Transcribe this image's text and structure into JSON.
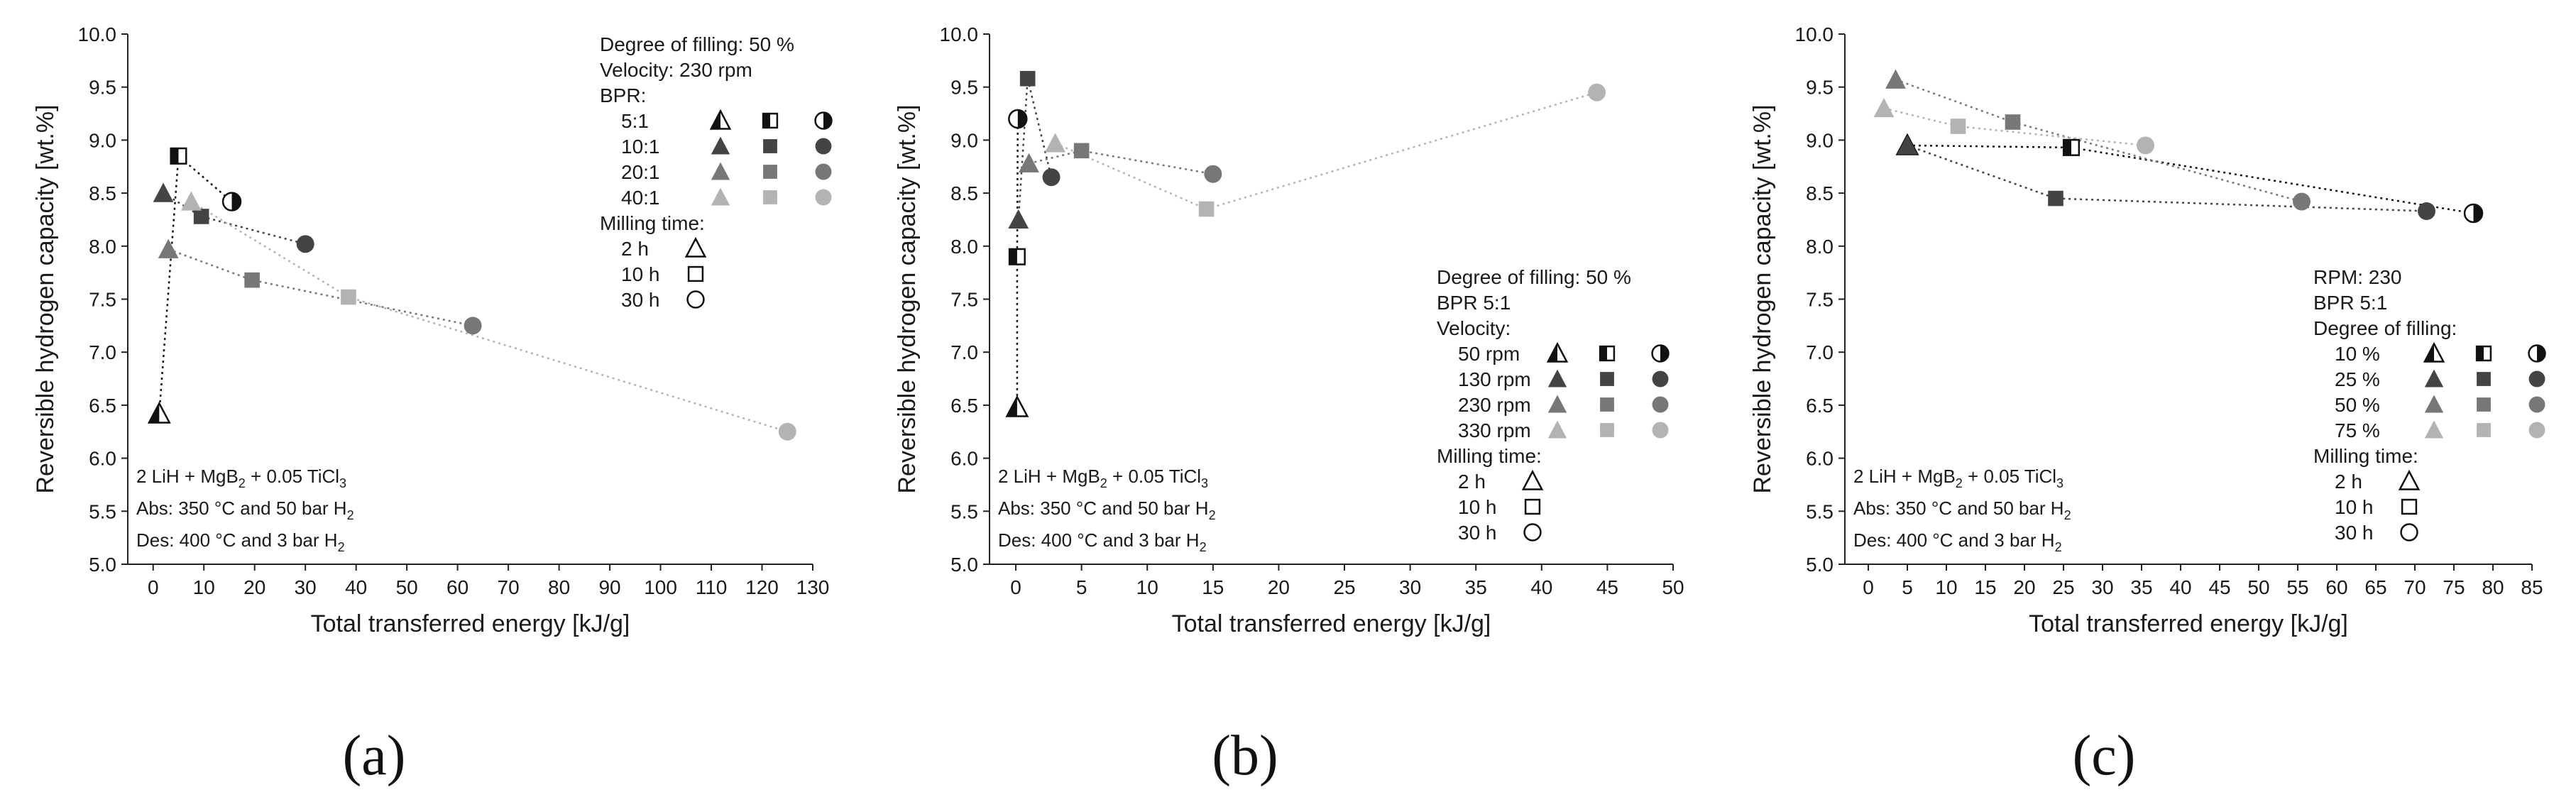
{
  "colors": {
    "c1": "#111111",
    "c2": "#444444",
    "c3": "#777777",
    "c4": "#b3b3b3"
  },
  "panels": [
    {
      "caption": "(a)",
      "chart_data": {
        "type": "scatter",
        "xlabel": "Total transferred energy [kJ/g]",
        "ylabel": "Reversible hydrogen capacity [wt.%]",
        "xlim": [
          -5,
          130
        ],
        "ylim": [
          5.0,
          10.0
        ],
        "xticks": [
          0,
          10,
          20,
          30,
          40,
          50,
          60,
          70,
          80,
          90,
          100,
          110,
          120,
          130
        ],
        "xtick_labels": [
          "0",
          "10",
          "20",
          "30",
          "40",
          "50",
          "60",
          "70",
          "80",
          "90",
          "100",
          "110",
          "120",
          "130"
        ],
        "yticks": [
          5.0,
          5.5,
          6.0,
          6.5,
          7.0,
          7.5,
          8.0,
          8.5,
          9.0,
          9.5,
          10.0
        ],
        "ytick_labels": [
          "5.0",
          "5.5",
          "6.0",
          "6.5",
          "7.0",
          "7.5",
          "8.0",
          "8.5",
          "9.0",
          "9.5",
          "10.0"
        ],
        "series": [
          {
            "name": "5:1",
            "color": "c1",
            "points": [
              {
                "x": 1.2,
                "y": 6.42,
                "shape": "triangle"
              },
              {
                "x": 5.0,
                "y": 8.85,
                "shape": "square"
              },
              {
                "x": 15.5,
                "y": 8.42,
                "shape": "circle"
              }
            ]
          },
          {
            "name": "10:1",
            "color": "c2",
            "points": [
              {
                "x": 2.0,
                "y": 8.5,
                "shape": "triangle"
              },
              {
                "x": 9.5,
                "y": 8.28,
                "shape": "square"
              },
              {
                "x": 30.0,
                "y": 8.02,
                "shape": "circle"
              }
            ]
          },
          {
            "name": "20:1",
            "color": "c3",
            "points": [
              {
                "x": 3.0,
                "y": 7.97,
                "shape": "triangle"
              },
              {
                "x": 19.5,
                "y": 7.68,
                "shape": "square"
              },
              {
                "x": 63.0,
                "y": 7.25,
                "shape": "circle"
              }
            ]
          },
          {
            "name": "40:1",
            "color": "c4",
            "points": [
              {
                "x": 7.5,
                "y": 8.42,
                "shape": "triangle"
              },
              {
                "x": 38.5,
                "y": 7.52,
                "shape": "square"
              },
              {
                "x": 125.0,
                "y": 6.25,
                "shape": "circle"
              }
            ]
          }
        ],
        "legend": {
          "placement": "top-right",
          "header": [
            "Degree of filling: 50 %",
            "Velocity: 230 rpm",
            "BPR:"
          ],
          "rows": [
            {
              "label": "5:1",
              "color": "c1"
            },
            {
              "label": "10:1",
              "color": "c2"
            },
            {
              "label": "20:1",
              "color": "c3"
            },
            {
              "label": "40:1",
              "color": "c4"
            }
          ],
          "milling_title": "Milling time:",
          "milling": [
            {
              "label": "2 h",
              "shape": "triangle"
            },
            {
              "label": "10 h",
              "shape": "square"
            },
            {
              "label": "30 h",
              "shape": "circle"
            }
          ]
        },
        "annotation": {
          "line1_main": "2 LiH + MgB",
          "line1_sub1": "2",
          "line1_mid": " + 0.05 TiCl",
          "line1_sub2": "3",
          "line2_main": "Abs: 350 °C and 50 bar H",
          "line2_sub": "2",
          "line3_main": "Des: 400 °C and 3 bar H",
          "line3_sub": "2"
        }
      }
    },
    {
      "caption": "(b)",
      "chart_data": {
        "type": "scatter",
        "xlabel": "Total transferred energy [kJ/g]",
        "ylabel": "Reversible hydrogen capacity [wt.%]",
        "xlim": [
          -2,
          50
        ],
        "ylim": [
          5.0,
          10.0
        ],
        "xticks": [
          0,
          5,
          10,
          15,
          20,
          25,
          30,
          35,
          40,
          45,
          50
        ],
        "xtick_labels": [
          "0",
          "5",
          "10",
          "15",
          "20",
          "25",
          "30",
          "35",
          "40",
          "45",
          "50"
        ],
        "yticks": [
          5.0,
          5.5,
          6.0,
          6.5,
          7.0,
          7.5,
          8.0,
          8.5,
          9.0,
          9.5,
          10.0
        ],
        "ytick_labels": [
          "5.0",
          "5.5",
          "6.0",
          "6.5",
          "7.0",
          "7.5",
          "8.0",
          "8.5",
          "9.0",
          "9.5",
          "10.0"
        ],
        "series": [
          {
            "name": "50 rpm",
            "color": "c1",
            "points": [
              {
                "x": 0.1,
                "y": 6.48,
                "shape": "triangle"
              },
              {
                "x": 0.1,
                "y": 7.9,
                "shape": "square"
              },
              {
                "x": 0.15,
                "y": 9.2,
                "shape": "circle"
              }
            ]
          },
          {
            "name": "130 rpm",
            "color": "c2",
            "points": [
              {
                "x": 0.2,
                "y": 8.25,
                "shape": "triangle"
              },
              {
                "x": 0.9,
                "y": 9.58,
                "shape": "square"
              },
              {
                "x": 2.7,
                "y": 8.65,
                "shape": "circle"
              }
            ]
          },
          {
            "name": "230 rpm",
            "color": "c3",
            "points": [
              {
                "x": 1.0,
                "y": 8.78,
                "shape": "triangle"
              },
              {
                "x": 5.0,
                "y": 8.9,
                "shape": "square"
              },
              {
                "x": 15.0,
                "y": 8.68,
                "shape": "circle"
              }
            ]
          },
          {
            "name": "330 rpm",
            "color": "c4",
            "points": [
              {
                "x": 3.0,
                "y": 8.97,
                "shape": "triangle"
              },
              {
                "x": 14.5,
                "y": 8.35,
                "shape": "square"
              },
              {
                "x": 44.2,
                "y": 9.45,
                "shape": "circle"
              }
            ]
          }
        ],
        "legend": {
          "placement": "bottom-right",
          "header": [
            "Degree of filling: 50 %",
            "BPR 5:1",
            "Velocity:"
          ],
          "rows": [
            {
              "label": "50 rpm",
              "color": "c1"
            },
            {
              "label": "130 rpm",
              "color": "c2"
            },
            {
              "label": "230 rpm",
              "color": "c3"
            },
            {
              "label": "330 rpm",
              "color": "c4"
            }
          ],
          "milling_title": "Milling time:",
          "milling": [
            {
              "label": "2 h",
              "shape": "triangle"
            },
            {
              "label": "10 h",
              "shape": "square"
            },
            {
              "label": "30 h",
              "shape": "circle"
            }
          ]
        },
        "annotation": {
          "line1_main": "2 LiH + MgB",
          "line1_sub1": "2",
          "line1_mid": " + 0.05 TiCl",
          "line1_sub2": "3",
          "line2_main": "Abs: 350 °C and 50 bar H",
          "line2_sub": "2",
          "line3_main": "Des: 400 °C and 3 bar H",
          "line3_sub": "2"
        }
      }
    },
    {
      "caption": "(c)",
      "chart_data": {
        "type": "scatter",
        "xlabel": "Total transferred energy [kJ/g]",
        "ylabel": "Reversible hydrogen capacity [wt.%]",
        "xlim": [
          -3,
          85
        ],
        "ylim": [
          5.0,
          10.0
        ],
        "xticks": [
          0,
          5,
          10,
          15,
          20,
          25,
          30,
          35,
          40,
          45,
          50,
          55,
          60,
          65,
          70,
          75,
          80,
          85
        ],
        "xtick_labels": [
          "0",
          "5",
          "10",
          "15",
          "20",
          "25",
          "30",
          "35",
          "40",
          "45",
          "50",
          "55",
          "60",
          "65",
          "70",
          "75",
          "80",
          "85"
        ],
        "yticks": [
          5.0,
          5.5,
          6.0,
          6.5,
          7.0,
          7.5,
          8.0,
          8.5,
          9.0,
          9.5,
          10.0
        ],
        "ytick_labels": [
          "5.0",
          "5.5",
          "6.0",
          "6.5",
          "7.0",
          "7.5",
          "8.0",
          "8.5",
          "9.0",
          "9.5",
          "10.0"
        ],
        "series": [
          {
            "name": "10 %",
            "color": "c1",
            "points": [
              {
                "x": 5.0,
                "y": 8.95,
                "shape": "triangle"
              },
              {
                "x": 26.0,
                "y": 8.93,
                "shape": "square"
              },
              {
                "x": 77.5,
                "y": 8.31,
                "shape": "circle"
              }
            ]
          },
          {
            "name": "25 %",
            "color": "c2",
            "points": [
              {
                "x": 5.0,
                "y": 8.95,
                "shape": "triangle"
              },
              {
                "x": 24.0,
                "y": 8.45,
                "shape": "square"
              },
              {
                "x": 71.5,
                "y": 8.33,
                "shape": "circle"
              }
            ]
          },
          {
            "name": "50 %",
            "color": "c3",
            "points": [
              {
                "x": 3.5,
                "y": 9.57,
                "shape": "triangle"
              },
              {
                "x": 18.5,
                "y": 9.17,
                "shape": "square"
              },
              {
                "x": 55.5,
                "y": 8.42,
                "shape": "circle"
              }
            ]
          },
          {
            "name": "75 %",
            "color": "c4",
            "points": [
              {
                "x": 2.0,
                "y": 9.3,
                "shape": "triangle"
              },
              {
                "x": 11.5,
                "y": 9.13,
                "shape": "square"
              },
              {
                "x": 35.5,
                "y": 8.95,
                "shape": "circle"
              }
            ]
          }
        ],
        "legend": {
          "placement": "bottom-right",
          "header": [
            "RPM: 230",
            "BPR 5:1",
            "Degree of filling:"
          ],
          "rows": [
            {
              "label": "10 %",
              "color": "c1"
            },
            {
              "label": "25 %",
              "color": "c2"
            },
            {
              "label": "50 %",
              "color": "c3"
            },
            {
              "label": "75 %",
              "color": "c4"
            }
          ],
          "milling_title": "Milling time:",
          "milling": [
            {
              "label": "2 h",
              "shape": "triangle"
            },
            {
              "label": "10 h",
              "shape": "square"
            },
            {
              "label": "30 h",
              "shape": "circle"
            }
          ]
        },
        "annotation": {
          "line1_main": "2 LiH + MgB",
          "line1_sub1": "2",
          "line1_mid": " + 0.05 TiCl",
          "line1_sub2": "3",
          "line2_main": "Abs: 350 °C and 50 bar H",
          "line2_sub": "2",
          "line3_main": "Des: 400 °C and 3 bar H",
          "line3_sub": "2"
        }
      }
    }
  ]
}
